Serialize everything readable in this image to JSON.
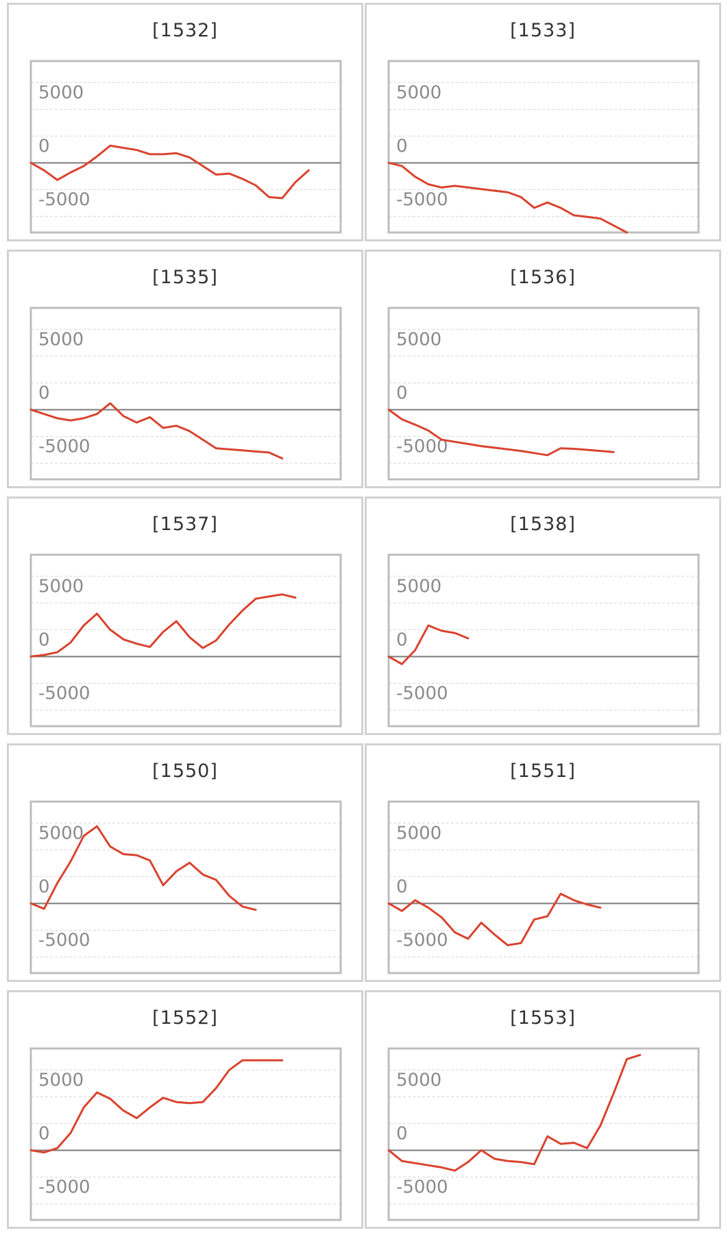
{
  "chart_data": [
    {
      "type": "line",
      "title": "[1532]",
      "ylim": [
        -6500,
        9500
      ],
      "yticks": [
        "5000",
        "0",
        "-5000"
      ],
      "ytick_values": [
        5000,
        0,
        -5000
      ],
      "grid": true,
      "values": [
        0,
        -700,
        -1600,
        -900,
        -300,
        600,
        1600,
        1400,
        1200,
        800,
        800,
        900,
        500,
        -300,
        -1100,
        -1000,
        -1500,
        -2100,
        -3200,
        -3300,
        -1800,
        -700
      ],
      "color": "#d9432f"
    },
    {
      "type": "line",
      "title": "[1533]",
      "ylim": [
        -6500,
        9500
      ],
      "yticks": [
        "5000",
        "0",
        "-5000"
      ],
      "ytick_values": [
        5000,
        0,
        -5000
      ],
      "grid": true,
      "values": [
        0,
        -300,
        -1300,
        -2000,
        -2300,
        -2150,
        -2300,
        -2450,
        -2600,
        -2750,
        -3200,
        -4200,
        -3700,
        -4200,
        -4900,
        -5050,
        -5200,
        -5850,
        -6500
      ],
      "color": "#d9432f"
    },
    {
      "type": "line",
      "title": "[1535]",
      "ylim": [
        -6500,
        9500
      ],
      "yticks": [
        "5000",
        "0",
        "-5000"
      ],
      "ytick_values": [
        5000,
        0,
        -5000
      ],
      "grid": true,
      "values": [
        0,
        -400,
        -800,
        -1000,
        -800,
        -400,
        600,
        -600,
        -1200,
        -700,
        -1700,
        -1500,
        -2000,
        -2800,
        -3600,
        -3700,
        -3800,
        -3900,
        -4000,
        -4550
      ],
      "color": "#d9432f"
    },
    {
      "type": "line",
      "title": "[1536]",
      "ylim": [
        -6500,
        9500
      ],
      "yticks": [
        "5000",
        "0",
        "-5000"
      ],
      "ytick_values": [
        5000,
        0,
        -5000
      ],
      "grid": true,
      "values": [
        0,
        -900,
        -1400,
        -1950,
        -2800,
        -3000,
        -3200,
        -3400,
        -3550,
        -3700,
        -3850,
        -4050,
        -4250,
        -3600,
        -3650,
        -3750,
        -3850,
        -3950
      ],
      "color": "#d9432f"
    },
    {
      "type": "line",
      "title": "[1537]",
      "ylim": [
        -6500,
        9500
      ],
      "yticks": [
        "5000",
        "0",
        "-5000"
      ],
      "ytick_values": [
        5000,
        0,
        -5000
      ],
      "grid": true,
      "values": [
        0,
        150,
        400,
        1300,
        2900,
        4000,
        2500,
        1600,
        1200,
        900,
        2300,
        3300,
        1800,
        800,
        1500,
        3000,
        4300,
        5400,
        5600,
        5800,
        5500
      ],
      "color": "#d9432f"
    },
    {
      "type": "line",
      "title": "[1538]",
      "ylim": [
        -6500,
        9500
      ],
      "yticks": [
        "5000",
        "0",
        "-5000"
      ],
      "ytick_values": [
        5000,
        0,
        -5000
      ],
      "grid": true,
      "values": [
        0,
        -700,
        600,
        2900,
        2400,
        2200,
        1700
      ],
      "color": "#d9432f"
    },
    {
      "type": "line",
      "title": "[1550]",
      "ylim": [
        -6500,
        9500
      ],
      "yticks": [
        "5000",
        "0",
        "-5000"
      ],
      "ytick_values": [
        5000,
        0,
        -5000
      ],
      "grid": true,
      "values": [
        0,
        -500,
        1900,
        3900,
        6300,
        7200,
        5300,
        4600,
        4500,
        4000,
        1700,
        3000,
        3800,
        2700,
        2200,
        700,
        -300,
        -600
      ],
      "color": "#d9432f"
    },
    {
      "type": "line",
      "title": "[1551]",
      "ylim": [
        -6500,
        9500
      ],
      "yticks": [
        "5000",
        "0",
        "-5000"
      ],
      "ytick_values": [
        5000,
        0,
        -5000
      ],
      "grid": true,
      "values": [
        0,
        -700,
        300,
        -400,
        -1300,
        -2700,
        -3300,
        -1800,
        -2900,
        -3900,
        -3700,
        -1500,
        -1200,
        900,
        300,
        -100,
        -400
      ],
      "color": "#d9432f"
    },
    {
      "type": "line",
      "title": "[1552]",
      "ylim": [
        -6500,
        9500
      ],
      "yticks": [
        "5000",
        "0",
        "-5000"
      ],
      "ytick_values": [
        5000,
        0,
        -5000
      ],
      "grid": true,
      "values": [
        0,
        -200,
        200,
        1600,
        4000,
        5400,
        4800,
        3700,
        3000,
        4000,
        4900,
        4500,
        4400,
        4500,
        5800,
        7500,
        8400,
        8400,
        8400,
        8400
      ],
      "color": "#d9432f"
    },
    {
      "type": "line",
      "title": "[1553]",
      "ylim": [
        -6500,
        9500
      ],
      "yticks": [
        "5000",
        "0",
        "-5000"
      ],
      "ytick_values": [
        5000,
        0,
        -5000
      ],
      "grid": true,
      "values": [
        0,
        -1000,
        -1200,
        -1400,
        -1600,
        -1900,
        -1100,
        0,
        -800,
        -1000,
        -1100,
        -1300,
        1300,
        600,
        700,
        200,
        2300,
        5300,
        8500,
        8900
      ],
      "color": "#d9432f"
    }
  ]
}
